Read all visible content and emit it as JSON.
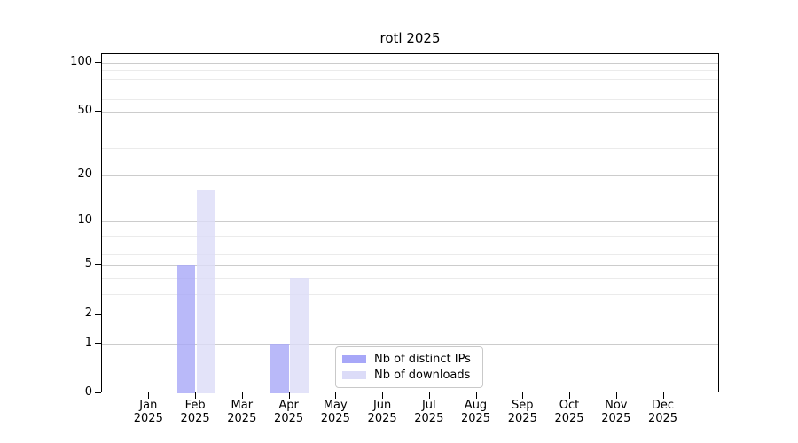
{
  "title": "rotl 2025",
  "chart_data": {
    "type": "bar",
    "title": "rotl 2025",
    "categories": [
      "Jan 2025",
      "Feb 2025",
      "Mar 2025",
      "Apr 2025",
      "May 2025",
      "Jun 2025",
      "Jul 2025",
      "Aug 2025",
      "Sep 2025",
      "Oct 2025",
      "Nov 2025",
      "Dec 2025"
    ],
    "series": [
      {
        "name": "Nb of distinct IPs",
        "color": "#a7a7f8",
        "values": [
          0,
          5,
          0,
          1,
          0,
          0,
          0,
          0,
          0,
          0,
          0,
          0
        ]
      },
      {
        "name": "Nb of downloads",
        "color": "#dcdcf8",
        "values": [
          0,
          16,
          0,
          4,
          0,
          0,
          0,
          0,
          0,
          0,
          0,
          0
        ]
      }
    ],
    "xlabel": "",
    "ylabel": "",
    "ylim": [
      0,
      100
    ],
    "y_scale": "log1p",
    "y_major_ticks": [
      0,
      1,
      2,
      5,
      10,
      20,
      50,
      100
    ],
    "y_minor_ticks": [
      3,
      4,
      6,
      7,
      8,
      9,
      30,
      40,
      60,
      70,
      80,
      90
    ],
    "grid": "horizontal",
    "legend_position": "lower-center-right"
  },
  "colors": {
    "major_grid": "#cccccc",
    "minor_grid": "#ebebeb",
    "axis": "#000000",
    "legend_border": "#c9c9c9",
    "background": "#ffffff"
  }
}
